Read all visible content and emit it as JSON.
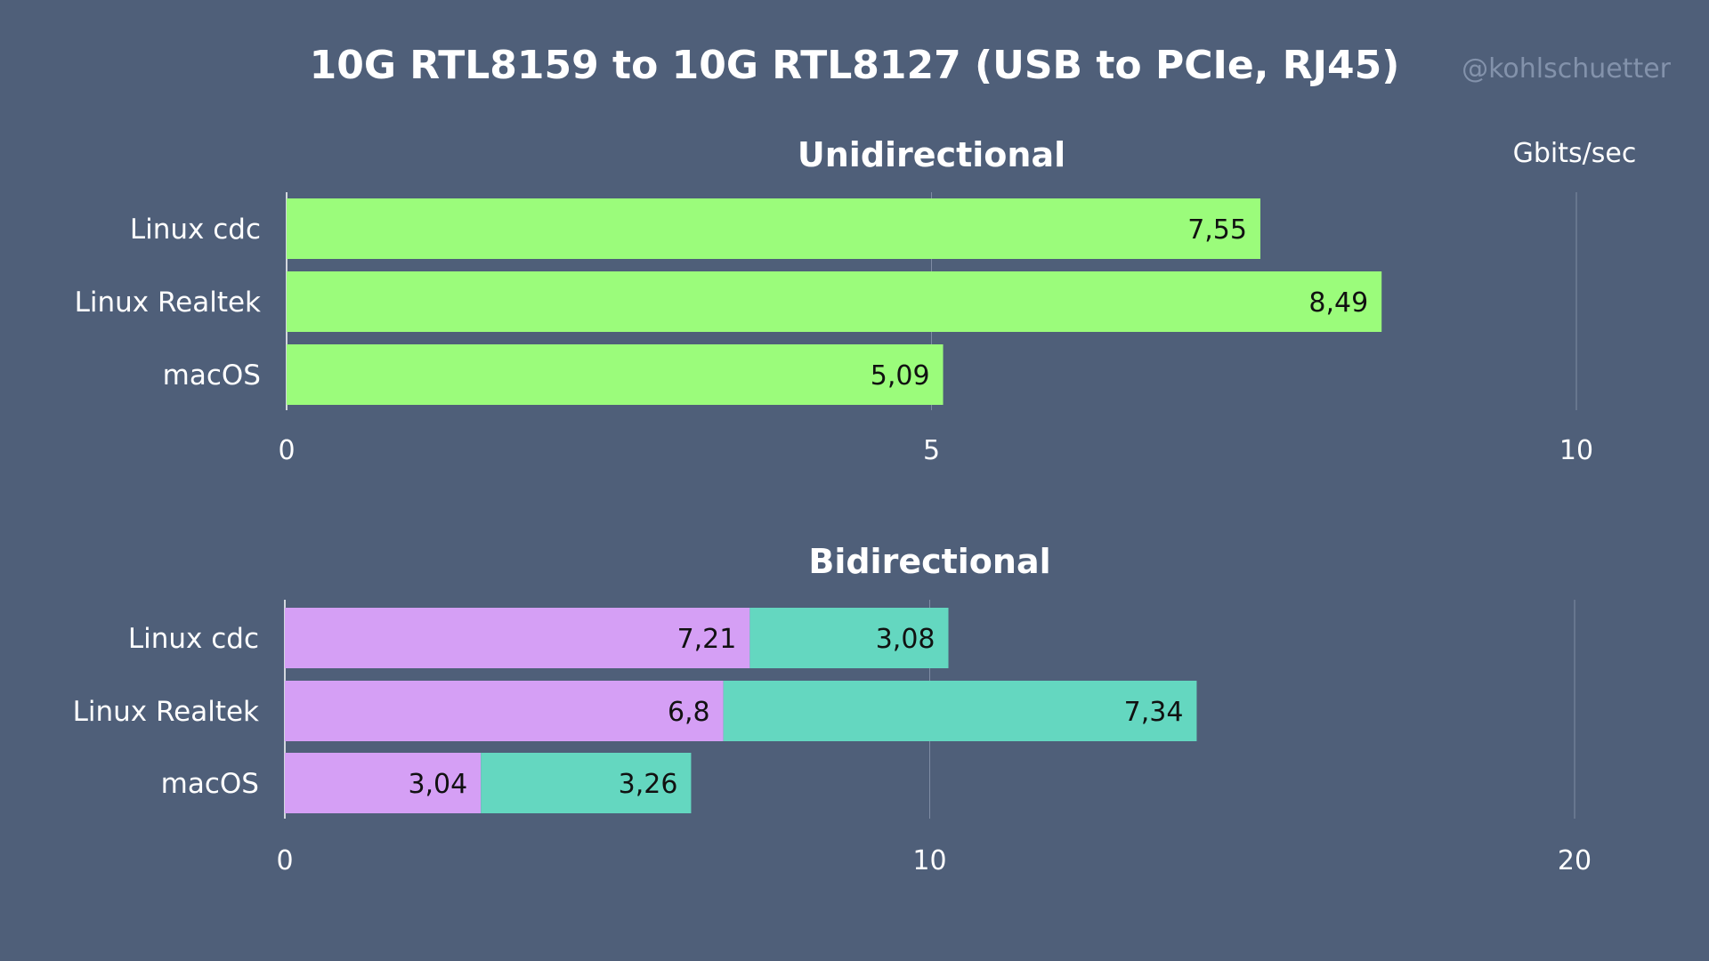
{
  "title": "10G RTL8159 to 10G RTL8127 (USB to PCIe, RJ45)",
  "watermark": "@kohlschuetter",
  "unit": "Gbits/sec",
  "colors": {
    "background": "#4f5f79",
    "unidirectional": "#9bfc7b",
    "bidirectional_a": "#d59ff5",
    "bidirectional_b": "#64d7c0",
    "grid": "#7f8ca3"
  },
  "chart_data": [
    {
      "type": "bar",
      "orientation": "horizontal",
      "title": "Unidirectional",
      "categories": [
        "Linux cdc",
        "Linux Realtek",
        "macOS"
      ],
      "series": [
        {
          "values": [
            7.55,
            8.49,
            5.09
          ],
          "labels": [
            "7,55",
            "8,49",
            "5,09"
          ],
          "color": "#9bfc7b"
        }
      ],
      "xlim": [
        0,
        10
      ],
      "ticks": [
        0,
        5,
        10
      ],
      "tick_labels": [
        "0",
        "5",
        "10"
      ],
      "stacked": false,
      "grid": true,
      "legend": "none"
    },
    {
      "type": "bar",
      "orientation": "horizontal",
      "title": "Bidirectional",
      "categories": [
        "Linux cdc",
        "Linux Realtek",
        "macOS"
      ],
      "series": [
        {
          "values": [
            7.21,
            6.8,
            3.04
          ],
          "labels": [
            "7,21",
            "6,8",
            "3,04"
          ],
          "color": "#d59ff5"
        },
        {
          "values": [
            3.08,
            7.34,
            3.26
          ],
          "labels": [
            "3,08",
            "7,34",
            "3,26"
          ],
          "color": "#64d7c0"
        }
      ],
      "xlim": [
        0,
        20
      ],
      "ticks": [
        0,
        10,
        20
      ],
      "tick_labels": [
        "0",
        "10",
        "20"
      ],
      "stacked": true,
      "grid": true,
      "legend": "none"
    }
  ]
}
